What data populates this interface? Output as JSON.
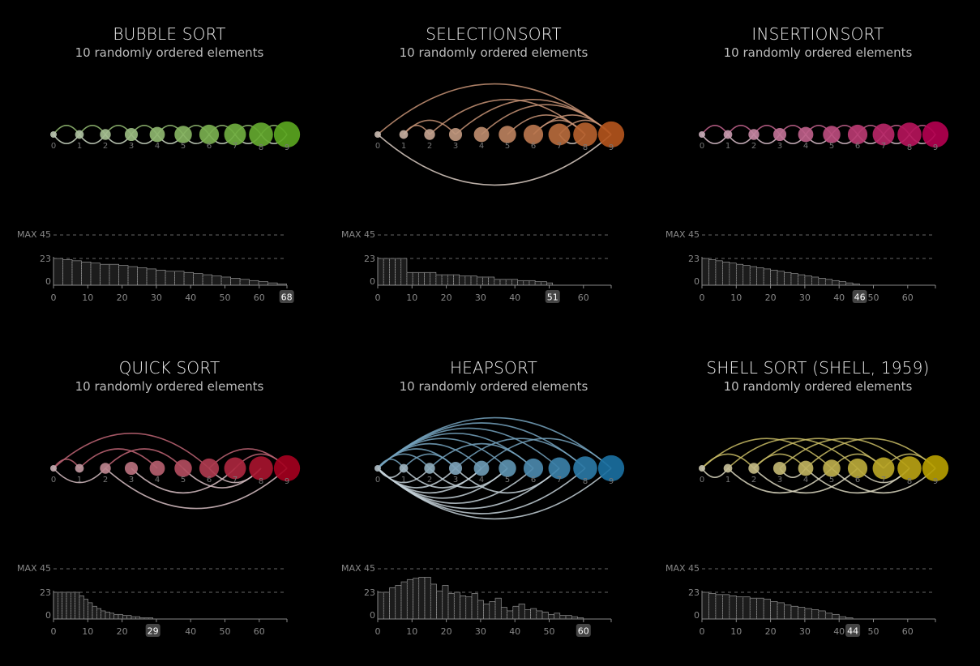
{
  "panels": [
    {
      "title": "BUBBLE SORT",
      "subtitle": "10 randomly ordered elements",
      "color": "#5aa51f",
      "arcs": [
        [
          0,
          1,
          1
        ],
        [
          1,
          2,
          1
        ],
        [
          2,
          3,
          1
        ],
        [
          3,
          4,
          1
        ],
        [
          4,
          5,
          1
        ],
        [
          5,
          6,
          1
        ],
        [
          6,
          7,
          1
        ],
        [
          7,
          8,
          1
        ],
        [
          8,
          9,
          1
        ],
        [
          0,
          1,
          -1
        ],
        [
          1,
          2,
          -1
        ],
        [
          2,
          3,
          -1
        ],
        [
          3,
          4,
          -1
        ],
        [
          4,
          5,
          -1
        ],
        [
          5,
          6,
          -1
        ],
        [
          6,
          7,
          -1
        ],
        [
          7,
          8,
          -1
        ],
        [
          8,
          9,
          -1
        ]
      ],
      "max_label": "MAX 45",
      "total": "68",
      "histogram": [
        23,
        22,
        21,
        20,
        19,
        18,
        18,
        17,
        16,
        15,
        14,
        13,
        12,
        12,
        11,
        10,
        9,
        8,
        7,
        6,
        5,
        4,
        3,
        2,
        1
      ]
    },
    {
      "title": "SELECTIONSORT",
      "subtitle": "10 randomly ordered elements",
      "color": "#b2541c",
      "arcs": [
        [
          0,
          9,
          1
        ],
        [
          0,
          9,
          -1
        ],
        [
          1,
          3,
          1
        ],
        [
          2,
          8,
          1
        ],
        [
          3,
          9,
          1
        ],
        [
          4,
          9,
          1
        ],
        [
          5,
          8,
          1
        ],
        [
          6,
          9,
          1
        ],
        [
          7,
          9,
          1
        ],
        [
          1,
          2,
          1
        ],
        [
          6,
          8,
          1
        ],
        [
          7,
          8,
          -1
        ]
      ],
      "max_label": "MAX 45",
      "total": "51",
      "histogram": [
        23,
        23,
        23,
        23,
        23,
        11,
        11,
        11,
        11,
        11,
        9,
        9,
        9,
        9,
        8,
        8,
        8,
        7,
        7,
        7,
        5,
        5,
        5,
        5,
        4,
        4,
        4,
        3,
        3,
        2
      ]
    },
    {
      "title": "INSERTIONSORT",
      "subtitle": "10 randomly ordered elements",
      "color": "#b2004f",
      "arcs": [
        [
          0,
          1,
          1
        ],
        [
          1,
          2,
          1
        ],
        [
          2,
          3,
          1
        ],
        [
          3,
          4,
          1
        ],
        [
          4,
          5,
          1
        ],
        [
          5,
          6,
          1
        ],
        [
          6,
          7,
          1
        ],
        [
          7,
          8,
          1
        ],
        [
          8,
          9,
          1
        ],
        [
          0,
          1,
          -1
        ],
        [
          1,
          2,
          -1
        ],
        [
          2,
          3,
          -1
        ],
        [
          3,
          4,
          -1
        ],
        [
          4,
          5,
          -1
        ],
        [
          5,
          6,
          -1
        ],
        [
          6,
          7,
          -1
        ],
        [
          7,
          8,
          -1
        ],
        [
          8,
          9,
          -1
        ]
      ],
      "max_label": "MAX 45",
      "total": "46",
      "histogram": [
        23,
        22,
        21,
        20,
        19,
        18,
        17,
        16,
        15,
        14,
        13,
        12,
        11,
        10,
        9,
        8,
        7,
        6,
        5,
        4,
        3,
        2,
        1
      ]
    },
    {
      "title": "QUICK SORT",
      "subtitle": "10 randomly ordered elements",
      "color": "#a3001e",
      "arcs": [
        [
          0,
          6,
          1
        ],
        [
          1,
          4,
          1
        ],
        [
          2,
          5,
          1
        ],
        [
          6,
          9,
          1
        ],
        [
          0,
          2,
          -1
        ],
        [
          3,
          7,
          -1
        ],
        [
          2,
          9,
          -1
        ],
        [
          5,
          8,
          -1
        ],
        [
          7,
          9,
          1
        ],
        [
          0,
          1,
          1
        ],
        [
          6,
          8,
          -1
        ]
      ],
      "max_label": "MAX 45",
      "total": "29",
      "histogram": [
        23,
        23,
        23,
        23,
        23,
        23,
        20,
        17,
        14,
        11,
        9,
        7,
        6,
        5,
        4,
        4,
        3,
        3,
        2,
        2,
        1,
        1,
        1
      ]
    },
    {
      "title": "HEAPSORT",
      "subtitle": "10 randomly ordered elements",
      "color": "#1a6fa0",
      "arcs": [
        [
          0,
          9,
          1
        ],
        [
          0,
          8,
          1
        ],
        [
          0,
          7,
          1
        ],
        [
          0,
          6,
          1
        ],
        [
          0,
          5,
          1
        ],
        [
          0,
          4,
          1
        ],
        [
          0,
          3,
          1
        ],
        [
          0,
          2,
          1
        ],
        [
          0,
          1,
          1
        ],
        [
          1,
          3,
          1
        ],
        [
          2,
          6,
          1
        ],
        [
          3,
          8,
          1
        ],
        [
          4,
          9,
          1
        ],
        [
          0,
          9,
          -1
        ],
        [
          0,
          8,
          -1
        ],
        [
          0,
          7,
          -1
        ],
        [
          0,
          6,
          -1
        ],
        [
          0,
          5,
          -1
        ],
        [
          0,
          4,
          -1
        ],
        [
          0,
          3,
          -1
        ],
        [
          0,
          2,
          -1
        ],
        [
          0,
          1,
          -1
        ],
        [
          1,
          4,
          -1
        ],
        [
          2,
          5,
          -1
        ],
        [
          3,
          7,
          -1
        ]
      ],
      "max_label": "MAX 45",
      "total": "60",
      "histogram": [
        23,
        23,
        27,
        29,
        32,
        34,
        35,
        36,
        36,
        30,
        24,
        29,
        22,
        23,
        20,
        19,
        22,
        16,
        13,
        15,
        18,
        10,
        7,
        11,
        13,
        8,
        9,
        7,
        6,
        4,
        5,
        3,
        3,
        2,
        1
      ]
    },
    {
      "title": "SHELL SORT (SHELL, 1959)",
      "subtitle": "10 randomly ordered elements",
      "color": "#b59d00",
      "arcs": [
        [
          0,
          5,
          1
        ],
        [
          1,
          6,
          1
        ],
        [
          2,
          7,
          1
        ],
        [
          3,
          8,
          1
        ],
        [
          4,
          9,
          1
        ],
        [
          0,
          2,
          1
        ],
        [
          2,
          4,
          1
        ],
        [
          5,
          7,
          1
        ],
        [
          7,
          9,
          1
        ],
        [
          0,
          1,
          -1
        ],
        [
          3,
          4,
          -1
        ],
        [
          1,
          5,
          -1
        ],
        [
          2,
          6,
          -1
        ],
        [
          4,
          8,
          -1
        ],
        [
          5,
          9,
          -1
        ],
        [
          6,
          8,
          -1
        ]
      ],
      "max_label": "MAX 45",
      "total": "44",
      "histogram": [
        23,
        22,
        21,
        21,
        20,
        19,
        19,
        18,
        18,
        17,
        15,
        14,
        12,
        11,
        10,
        9,
        8,
        7,
        5,
        4,
        2,
        1
      ]
    }
  ],
  "chart_data": [
    {
      "type": "bar",
      "title": "BUBBLE SORT",
      "subtitle": "10 randomly ordered elements",
      "node_labels": [
        "0",
        "1",
        "2",
        "3",
        "4",
        "5",
        "6",
        "7",
        "8",
        "9"
      ],
      "x_ticks": [
        "0",
        "10",
        "20",
        "30",
        "40",
        "50",
        "60"
      ],
      "y_ticks": [
        "0",
        "23"
      ],
      "max": 45,
      "comparisons": 68
    },
    {
      "type": "bar",
      "title": "SELECTIONSORT",
      "subtitle": "10 randomly ordered elements",
      "node_labels": [
        "0",
        "1",
        "2",
        "3",
        "4",
        "5",
        "6",
        "7",
        "8",
        "9"
      ],
      "x_ticks": [
        "0",
        "10",
        "20",
        "30",
        "40",
        "50",
        "60"
      ],
      "y_ticks": [
        "0",
        "23"
      ],
      "max": 45,
      "comparisons": 51
    },
    {
      "type": "bar",
      "title": "INSERTIONSORT",
      "subtitle": "10 randomly ordered elements",
      "node_labels": [
        "0",
        "1",
        "2",
        "3",
        "4",
        "5",
        "6",
        "7",
        "8",
        "9"
      ],
      "x_ticks": [
        "0",
        "10",
        "20",
        "30",
        "40",
        "50",
        "60"
      ],
      "y_ticks": [
        "0",
        "23"
      ],
      "max": 45,
      "comparisons": 46
    },
    {
      "type": "bar",
      "title": "QUICK SORT",
      "subtitle": "10 randomly ordered elements",
      "node_labels": [
        "0",
        "1",
        "2",
        "3",
        "4",
        "5",
        "6",
        "7",
        "8",
        "9"
      ],
      "x_ticks": [
        "0",
        "10",
        "20",
        "30",
        "40",
        "50",
        "60"
      ],
      "y_ticks": [
        "0",
        "23"
      ],
      "max": 45,
      "comparisons": 29
    },
    {
      "type": "bar",
      "title": "HEAPSORT",
      "subtitle": "10 randomly ordered elements",
      "node_labels": [
        "0",
        "1",
        "2",
        "3",
        "4",
        "5",
        "6",
        "7",
        "8",
        "9"
      ],
      "x_ticks": [
        "0",
        "10",
        "20",
        "30",
        "40",
        "50",
        "60"
      ],
      "y_ticks": [
        "0",
        "23"
      ],
      "max": 45,
      "comparisons": 60
    },
    {
      "type": "bar",
      "title": "SHELL SORT (SHELL, 1959)",
      "subtitle": "10 randomly ordered elements",
      "node_labels": [
        "0",
        "1",
        "2",
        "3",
        "4",
        "5",
        "6",
        "7",
        "8",
        "9"
      ],
      "x_ticks": [
        "0",
        "10",
        "20",
        "30",
        "40",
        "50",
        "60"
      ],
      "y_ticks": [
        "0",
        "23"
      ],
      "max": 45,
      "comparisons": 44
    }
  ]
}
